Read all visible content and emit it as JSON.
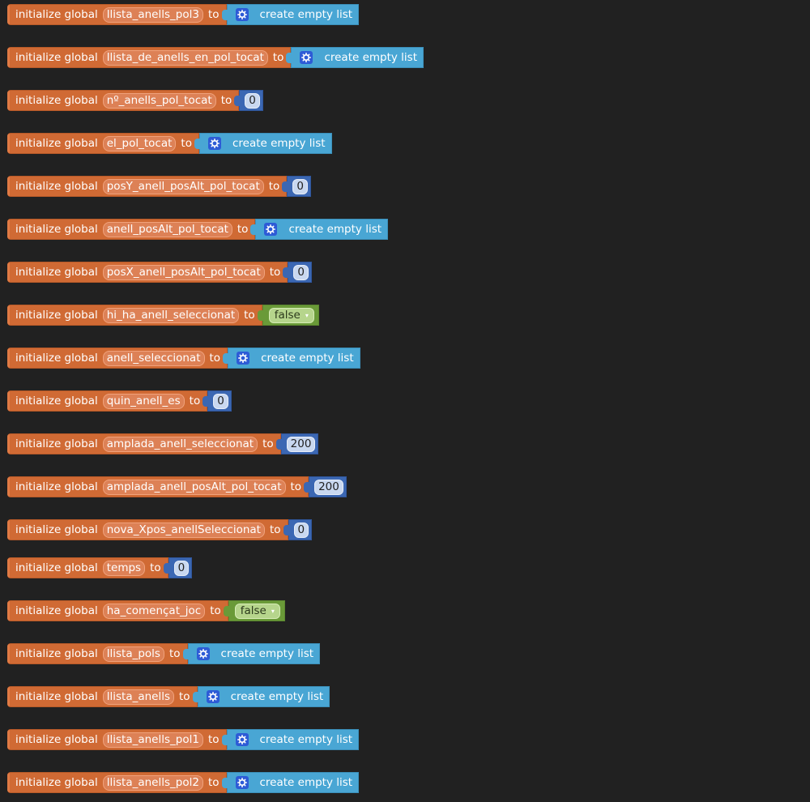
{
  "blocks": [
    {
      "keyword": "initialize global",
      "name": "llista_anells_pol3",
      "to": "to",
      "kind": "list",
      "value": "create empty list"
    },
    {
      "keyword": "initialize global",
      "name": "llista_de_anells_en_pol_tocat",
      "to": "to",
      "kind": "list",
      "value": "create empty list"
    },
    {
      "keyword": "initialize global",
      "name": "nº_anells_pol_tocat",
      "to": "to",
      "kind": "number",
      "value": "0"
    },
    {
      "keyword": "initialize global",
      "name": "el_pol_tocat",
      "to": "to",
      "kind": "list",
      "value": "create empty list"
    },
    {
      "keyword": "initialize global",
      "name": "posY_anell_posAlt_pol_tocat",
      "to": "to",
      "kind": "number",
      "value": "0"
    },
    {
      "keyword": "initialize global",
      "name": "anell_posAlt_pol_tocat",
      "to": "to",
      "kind": "list",
      "value": "create empty list"
    },
    {
      "keyword": "initialize global",
      "name": "posX_anell_posAlt_pol_tocat",
      "to": "to",
      "kind": "number",
      "value": "0"
    },
    {
      "keyword": "initialize global",
      "name": "hi_ha_anell_seleccionat",
      "to": "to",
      "kind": "boolean",
      "value": "false"
    },
    {
      "keyword": "initialize global",
      "name": "anell_seleccionat",
      "to": "to",
      "kind": "list",
      "value": "create empty list"
    },
    {
      "keyword": "initialize global",
      "name": "quin_anell_es",
      "to": "to",
      "kind": "number",
      "value": "0"
    },
    {
      "keyword": "initialize global",
      "name": "amplada_anell_seleccionat",
      "to": "to",
      "kind": "number",
      "value": "200"
    },
    {
      "keyword": "initialize global",
      "name": "amplada_anell_posAlt_pol_tocat",
      "to": "to",
      "kind": "number",
      "value": "200"
    },
    {
      "keyword": "initialize global",
      "name": "nova_Xpos_anellSeleccionat",
      "to": "to",
      "kind": "number",
      "value": "0"
    },
    {
      "keyword": "initialize global",
      "name": "temps",
      "to": "to",
      "kind": "number",
      "value": "0"
    },
    {
      "keyword": "initialize global",
      "name": "ha_començat_joc",
      "to": "to",
      "kind": "boolean",
      "value": "false"
    },
    {
      "keyword": "initialize global",
      "name": "llista_pols",
      "to": "to",
      "kind": "list",
      "value": "create empty list"
    },
    {
      "keyword": "initialize global",
      "name": "llista_anells",
      "to": "to",
      "kind": "list",
      "value": "create empty list"
    },
    {
      "keyword": "initialize global",
      "name": "llista_anells_pol1",
      "to": "to",
      "kind": "list",
      "value": "create empty list"
    },
    {
      "keyword": "initialize global",
      "name": "llista_anells_pol2",
      "to": "to",
      "kind": "list",
      "value": "create empty list"
    }
  ],
  "colors": {
    "workspace_background": "#212121",
    "variable_block": "#d06a34",
    "list_block": "#49a6d4",
    "number_block": "#3b67b3",
    "boolean_block": "#6a9a38",
    "gear_icon": "#2d5bd6"
  },
  "icons": {
    "list_mutator": "gear-icon",
    "boolean_dropdown": "chevron-down-icon"
  }
}
